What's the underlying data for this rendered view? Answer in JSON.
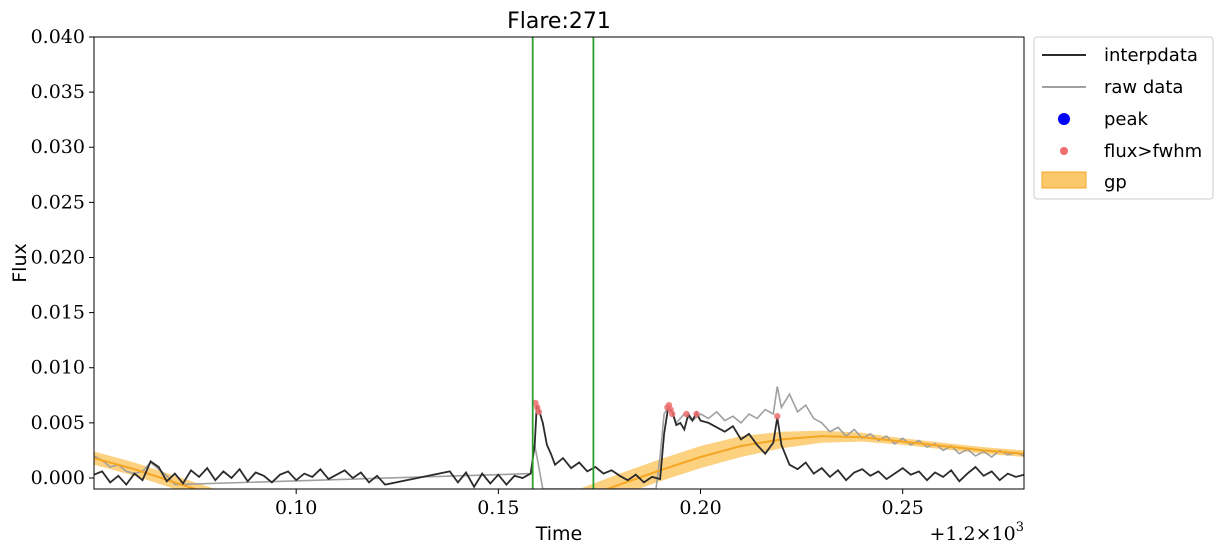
{
  "chart_data": {
    "type": "line",
    "title": "Flare:271",
    "xlabel": "Time",
    "ylabel": "Flux",
    "x_offset_label": "+1.2×10",
    "x_offset_exponent": "3",
    "xlim": [
      0.05,
      0.28
    ],
    "ylim": [
      -0.001,
      0.04
    ],
    "x_ticks": [
      0.1,
      0.15,
      0.2,
      0.25
    ],
    "x_tick_labels": [
      "0.10",
      "0.15",
      "0.20",
      "0.25"
    ],
    "y_ticks": [
      0.0,
      0.005,
      0.01,
      0.015,
      0.02,
      0.025,
      0.03,
      0.035,
      0.04
    ],
    "y_tick_labels": [
      "0.000",
      "0.005",
      "0.010",
      "0.015",
      "0.020",
      "0.025",
      "0.030",
      "0.035",
      "0.040"
    ],
    "grid": false,
    "legend_position": "outside-top-right",
    "vlines": [
      0.1585,
      0.1735
    ],
    "vline_color": "#2ca02c",
    "series": [
      {
        "name": "interpdata",
        "color": "#2b2b2b",
        "points": [
          [
            0.05,
            0.0003
          ],
          [
            0.052,
            0.0006
          ],
          [
            0.054,
            -0.0004
          ],
          [
            0.056,
            0.0002
          ],
          [
            0.058,
            -0.0006
          ],
          [
            0.06,
            0.0004
          ],
          [
            0.062,
            -0.0002
          ],
          [
            0.064,
            0.0015
          ],
          [
            0.066,
            0.001
          ],
          [
            0.068,
            -0.0003
          ],
          [
            0.07,
            0.0004
          ],
          [
            0.072,
            -0.0005
          ],
          [
            0.074,
            0.0007
          ],
          [
            0.076,
            0.0001
          ],
          [
            0.078,
            0.0009
          ],
          [
            0.08,
            -0.0002
          ],
          [
            0.082,
            0.0006
          ],
          [
            0.084,
            0.0
          ],
          [
            0.086,
            0.0008
          ],
          [
            0.088,
            -0.0003
          ],
          [
            0.09,
            0.0005
          ],
          [
            0.092,
            0.0002
          ],
          [
            0.094,
            -0.0004
          ],
          [
            0.096,
            0.0003
          ],
          [
            0.098,
            0.0006
          ],
          [
            0.1,
            -0.0002
          ],
          [
            0.102,
            0.0004
          ],
          [
            0.104,
            0.0001
          ],
          [
            0.106,
            0.0008
          ],
          [
            0.108,
            -0.0001
          ],
          [
            0.11,
            0.0003
          ],
          [
            0.112,
            0.0007
          ],
          [
            0.114,
            0.0
          ],
          [
            0.116,
            0.0005
          ],
          [
            0.118,
            -0.0004
          ],
          [
            0.12,
            0.0002
          ],
          [
            0.122,
            -0.0006
          ],
          [
            0.138,
            0.0006
          ],
          [
            0.14,
            -0.0004
          ],
          [
            0.142,
            0.0005
          ],
          [
            0.144,
            -0.0008
          ],
          [
            0.146,
            0.0004
          ],
          [
            0.148,
            -0.0005
          ],
          [
            0.15,
            0.0003
          ],
          [
            0.152,
            -0.0006
          ],
          [
            0.154,
            0.0002
          ],
          [
            0.156,
            0.0
          ],
          [
            0.158,
            0.0004
          ],
          [
            0.159,
            0.003
          ],
          [
            0.1595,
            0.0066
          ],
          [
            0.16,
            0.0062
          ],
          [
            0.161,
            0.005
          ],
          [
            0.162,
            0.003
          ],
          [
            0.163,
            0.0022
          ],
          [
            0.164,
            0.0012
          ],
          [
            0.166,
            0.0018
          ],
          [
            0.168,
            0.0009
          ],
          [
            0.17,
            0.0014
          ],
          [
            0.172,
            0.0006
          ],
          [
            0.174,
            0.001
          ],
          [
            0.176,
            0.0004
          ],
          [
            0.178,
            0.0007
          ],
          [
            0.18,
            0.0002
          ],
          [
            0.182,
            -0.0002
          ],
          [
            0.184,
            0.0003
          ],
          [
            0.186,
            -0.0004
          ],
          [
            0.188,
            0.0001
          ],
          [
            0.19,
            -0.0001
          ],
          [
            0.191,
            0.004
          ],
          [
            0.192,
            0.0064
          ],
          [
            0.193,
            0.006
          ],
          [
            0.194,
            0.0048
          ],
          [
            0.195,
            0.005
          ],
          [
            0.196,
            0.0044
          ],
          [
            0.197,
            0.0058
          ],
          [
            0.198,
            0.0052
          ],
          [
            0.199,
            0.0059
          ],
          [
            0.2,
            0.0052
          ],
          [
            0.202,
            0.005
          ],
          [
            0.204,
            0.0046
          ],
          [
            0.206,
            0.0042
          ],
          [
            0.208,
            0.0047
          ],
          [
            0.21,
            0.0035
          ],
          [
            0.212,
            0.004
          ],
          [
            0.214,
            0.003
          ],
          [
            0.216,
            0.0022
          ],
          [
            0.218,
            0.0032
          ],
          [
            0.219,
            0.0055
          ],
          [
            0.22,
            0.003
          ],
          [
            0.222,
            0.0012
          ],
          [
            0.224,
            0.0008
          ],
          [
            0.226,
            0.0014
          ],
          [
            0.228,
            0.0004
          ],
          [
            0.23,
            0.0009
          ],
          [
            0.232,
            0.0001
          ],
          [
            0.234,
            0.0007
          ],
          [
            0.236,
            -0.0002
          ],
          [
            0.238,
            0.0005
          ],
          [
            0.24,
            0.0008
          ],
          [
            0.242,
            0.0002
          ],
          [
            0.244,
            0.0006
          ],
          [
            0.246,
            -0.0001
          ],
          [
            0.248,
            0.0004
          ],
          [
            0.25,
            0.0009
          ],
          [
            0.252,
            0.0003
          ],
          [
            0.254,
            0.0006
          ],
          [
            0.256,
            -0.0002
          ],
          [
            0.258,
            0.0005
          ],
          [
            0.26,
            0.0001
          ],
          [
            0.262,
            0.0007
          ],
          [
            0.264,
            -0.0003
          ],
          [
            0.266,
            0.0004
          ],
          [
            0.268,
            0.001
          ],
          [
            0.27,
            0.0002
          ],
          [
            0.272,
            0.0006
          ],
          [
            0.274,
            -0.0002
          ],
          [
            0.276,
            0.0004
          ],
          [
            0.278,
            0.0001
          ],
          [
            0.28,
            0.0003
          ]
        ]
      },
      {
        "name": "raw data",
        "color": "#a0a0a0",
        "points": [
          [
            0.05,
            0.002
          ],
          [
            0.052,
            0.0016
          ],
          [
            0.054,
            0.001
          ],
          [
            0.056,
            0.0012
          ],
          [
            0.058,
            0.0006
          ],
          [
            0.06,
            0.0004
          ],
          [
            0.062,
            0.0006
          ],
          [
            0.064,
            0.0014
          ],
          [
            0.066,
            0.0008
          ],
          [
            0.068,
            0.0002
          ],
          [
            0.07,
            -0.0006
          ],
          [
            0.158,
            0.0004
          ],
          [
            0.159,
            0.003
          ],
          [
            0.16,
            0.001
          ],
          [
            0.161,
            -0.001
          ],
          [
            0.189,
            -0.001
          ],
          [
            0.19,
            0.002
          ],
          [
            0.191,
            0.0058
          ],
          [
            0.192,
            0.0064
          ],
          [
            0.193,
            0.006
          ],
          [
            0.194,
            0.005
          ],
          [
            0.196,
            0.0058
          ],
          [
            0.198,
            0.0052
          ],
          [
            0.2,
            0.0058
          ],
          [
            0.202,
            0.0054
          ],
          [
            0.204,
            0.006
          ],
          [
            0.206,
            0.0052
          ],
          [
            0.208,
            0.0056
          ],
          [
            0.21,
            0.005
          ],
          [
            0.212,
            0.0058
          ],
          [
            0.214,
            0.0054
          ],
          [
            0.216,
            0.0062
          ],
          [
            0.218,
            0.0058
          ],
          [
            0.219,
            0.0083
          ],
          [
            0.22,
            0.0064
          ],
          [
            0.222,
            0.0076
          ],
          [
            0.224,
            0.006
          ],
          [
            0.226,
            0.0066
          ],
          [
            0.228,
            0.0054
          ],
          [
            0.23,
            0.005
          ],
          [
            0.232,
            0.0042
          ],
          [
            0.234,
            0.0046
          ],
          [
            0.236,
            0.0038
          ],
          [
            0.238,
            0.0044
          ],
          [
            0.24,
            0.0036
          ],
          [
            0.242,
            0.004
          ],
          [
            0.244,
            0.0034
          ],
          [
            0.246,
            0.0038
          ],
          [
            0.248,
            0.0031
          ],
          [
            0.25,
            0.0036
          ],
          [
            0.252,
            0.003
          ],
          [
            0.254,
            0.0034
          ],
          [
            0.256,
            0.0028
          ],
          [
            0.258,
            0.0031
          ],
          [
            0.26,
            0.0025
          ],
          [
            0.262,
            0.0029
          ],
          [
            0.264,
            0.0022
          ],
          [
            0.266,
            0.0026
          ],
          [
            0.268,
            0.002
          ],
          [
            0.27,
            0.0024
          ],
          [
            0.272,
            0.0019
          ],
          [
            0.274,
            0.0025
          ],
          [
            0.276,
            0.0021
          ],
          [
            0.278,
            0.0023
          ],
          [
            0.28,
            0.002
          ]
        ]
      }
    ],
    "peak": {
      "name": "peak",
      "color": "#0000ff",
      "points": []
    },
    "flux_fwhm": {
      "name": "flux>fwhm",
      "color": "#ef6f6f",
      "points": [
        [
          0.1592,
          0.0068
        ],
        [
          0.1596,
          0.0064
        ],
        [
          0.16,
          0.006
        ],
        [
          0.1918,
          0.0064
        ],
        [
          0.1922,
          0.0066
        ],
        [
          0.1926,
          0.0062
        ],
        [
          0.193,
          0.0058
        ],
        [
          0.1965,
          0.0058
        ],
        [
          0.199,
          0.0058
        ],
        [
          0.219,
          0.0056
        ]
      ]
    },
    "gp": {
      "name": "gp",
      "color": "#f5a623",
      "fill_color": "#fcc96a",
      "x": [
        0.05,
        0.06,
        0.07,
        0.08,
        0.09,
        0.1,
        0.11,
        0.12,
        0.13,
        0.14,
        0.15,
        0.16,
        0.17,
        0.18,
        0.19,
        0.2,
        0.21,
        0.22,
        0.23,
        0.24,
        0.25,
        0.26,
        0.27,
        0.28
      ],
      "mean": [
        0.0018,
        0.0008,
        -0.0004,
        -0.0016,
        -0.0027,
        -0.0037,
        -0.0045,
        -0.005,
        -0.0052,
        -0.005,
        -0.0043,
        -0.0032,
        -0.0019,
        -0.0006,
        0.0007,
        0.0019,
        0.0029,
        0.0035,
        0.0038,
        0.0037,
        0.0033,
        0.0029,
        0.0025,
        0.0022
      ],
      "lower": [
        0.0012,
        0.0002,
        -0.001,
        -0.0022,
        -0.0033,
        -0.0043,
        -0.0051,
        -0.0056,
        -0.0058,
        -0.0056,
        -0.0049,
        -0.004,
        -0.0028,
        -0.0016,
        -0.0003,
        0.0009,
        0.0019,
        0.0027,
        0.0032,
        0.0033,
        0.003,
        0.0026,
        0.0022,
        0.0019
      ],
      "upper": [
        0.0024,
        0.0014,
        0.0002,
        -0.001,
        -0.0021,
        -0.0031,
        -0.0039,
        -0.0044,
        -0.0046,
        -0.0044,
        -0.0037,
        -0.0024,
        -0.001,
        0.0004,
        0.0017,
        0.0029,
        0.0038,
        0.0042,
        0.0043,
        0.0041,
        0.0036,
        0.0032,
        0.0028,
        0.0025
      ]
    }
  }
}
